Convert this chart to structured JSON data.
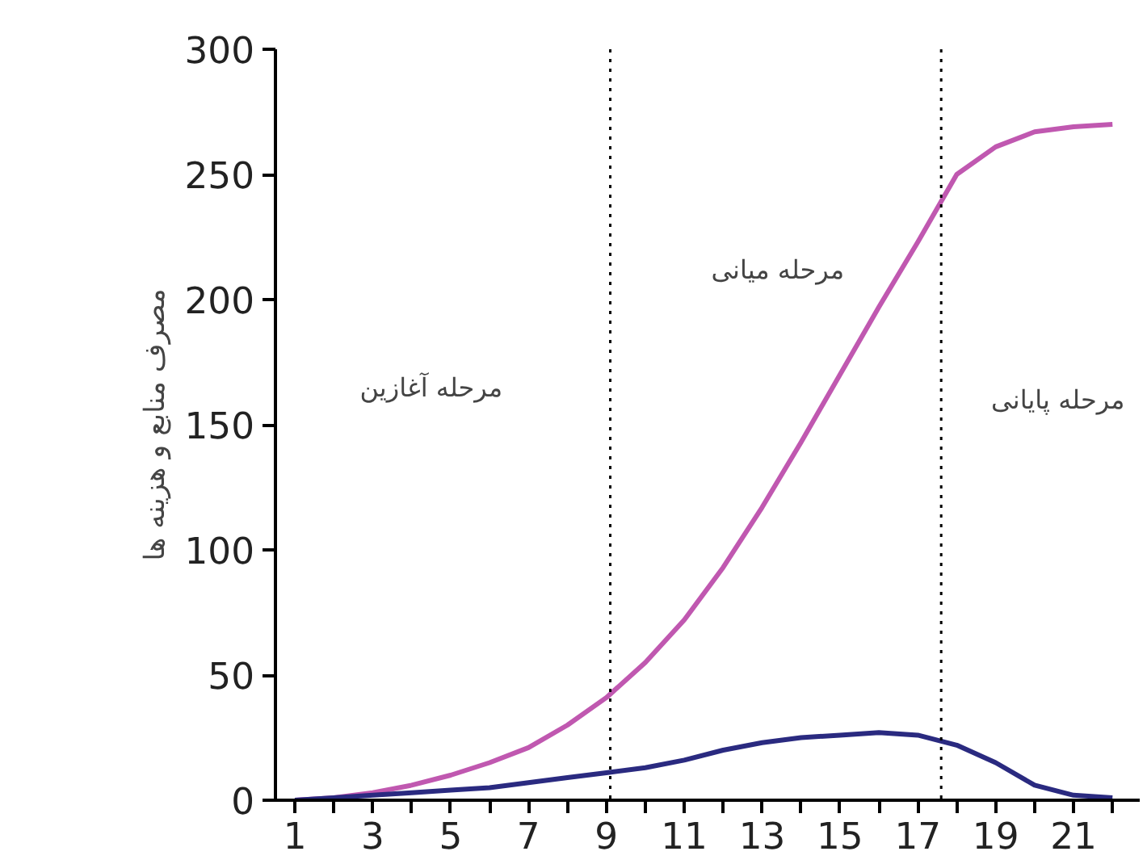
{
  "chart_data": {
    "type": "line",
    "ylabel": "مصرف منابع و هزینه ها",
    "annotations": [
      "مرحله آغازین",
      "مرحله میانی",
      "مرحله پایانی"
    ],
    "x": [
      1,
      2,
      3,
      4,
      5,
      6,
      7,
      8,
      9,
      10,
      11,
      12,
      13,
      14,
      15,
      16,
      17,
      18,
      19,
      20,
      21,
      22
    ],
    "series": [
      {
        "color": "#c058b0",
        "values": [
          0,
          1,
          3,
          6,
          10,
          15,
          21,
          30,
          41,
          55,
          72,
          93,
          117,
          143,
          170,
          197,
          223,
          250,
          261,
          267,
          269,
          270
        ]
      },
      {
        "color": "#2a2a80",
        "values": [
          0,
          1,
          2,
          3,
          4,
          5,
          7,
          9,
          11,
          13,
          16,
          20,
          23,
          25,
          26,
          27,
          26,
          22,
          15,
          6,
          2,
          1
        ]
      }
    ],
    "xlim": [
      0.5,
      22.7
    ],
    "ylim": [
      0,
      300
    ],
    "xticks": [
      1,
      {
        "value": 2,
        "label": null
      },
      3,
      {
        "value": 4,
        "label": null
      },
      5,
      {
        "value": 6,
        "label": null
      },
      7,
      {
        "value": 8,
        "label": null
      },
      9,
      {
        "value": 10,
        "label": null
      },
      11,
      {
        "value": 12,
        "label": null
      },
      13,
      {
        "value": 14,
        "label": null
      },
      15,
      {
        "value": 16,
        "label": null
      },
      17,
      {
        "value": 18,
        "label": null
      },
      19,
      {
        "value": 20,
        "label": null
      },
      21,
      {
        "value": 22,
        "label": null
      }
    ],
    "yticks": [
      0,
      50,
      100,
      150,
      200,
      250,
      300
    ],
    "ref_lines": [
      {
        "axis": "x",
        "value": 9.1,
        "color": "#000000",
        "line_style": "dotted"
      },
      {
        "axis": "x",
        "value": 17.6,
        "color": "#000000",
        "line_style": "dotted"
      }
    ],
    "grid": false,
    "marker": "none",
    "line_style": "solid"
  }
}
